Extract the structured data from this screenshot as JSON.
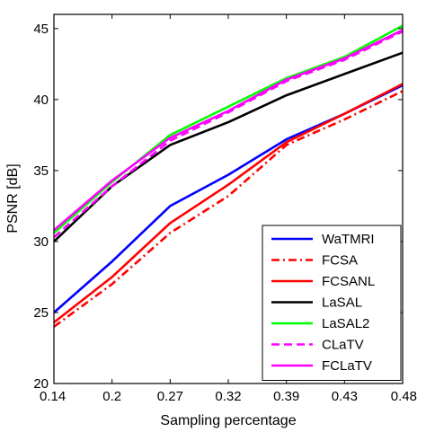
{
  "chart_data": {
    "type": "line",
    "xlabel": "Sampling percentage",
    "ylabel": "PSNR [dB]",
    "x": [
      0.14,
      0.2,
      0.27,
      0.32,
      0.39,
      0.43,
      0.48
    ],
    "x_tick_labels": [
      "0.14",
      "0.2",
      "0.27",
      "0.32",
      "0.39",
      "0.43",
      "0.48"
    ],
    "ylim": [
      20,
      46
    ],
    "y_ticks": [
      20,
      25,
      30,
      35,
      40,
      45
    ],
    "grid": false,
    "legend_position": "bottom-right",
    "series": [
      {
        "name": "WaTMRI",
        "color": "#0000ff",
        "dash": "solid",
        "values": [
          25.0,
          28.6,
          32.5,
          34.7,
          37.2,
          39.0,
          41.0
        ]
      },
      {
        "name": "FCSA",
        "color": "#ff0000",
        "dash": "dashdot",
        "values": [
          24.0,
          27.0,
          30.6,
          33.2,
          36.8,
          38.6,
          40.6
        ]
      },
      {
        "name": "FCSANL",
        "color": "#ff0000",
        "dash": "solid",
        "values": [
          24.3,
          27.5,
          31.3,
          34.0,
          37.0,
          39.0,
          41.1
        ]
      },
      {
        "name": "LaSAL",
        "color": "#000000",
        "dash": "solid",
        "values": [
          30.0,
          33.9,
          36.8,
          38.4,
          40.3,
          41.8,
          43.3
        ]
      },
      {
        "name": "LaSAL2",
        "color": "#00ff00",
        "dash": "solid",
        "values": [
          30.6,
          34.2,
          37.5,
          39.5,
          41.5,
          43.0,
          45.2
        ]
      },
      {
        "name": "CLaTV",
        "color": "#ff00ff",
        "dash": "dashed",
        "values": [
          30.3,
          33.9,
          37.1,
          39.1,
          41.3,
          42.8,
          44.8
        ]
      },
      {
        "name": "FCLaTV",
        "color": "#ff00ff",
        "dash": "solid",
        "values": [
          30.8,
          34.3,
          37.3,
          39.2,
          41.4,
          42.9,
          44.9
        ]
      }
    ]
  }
}
